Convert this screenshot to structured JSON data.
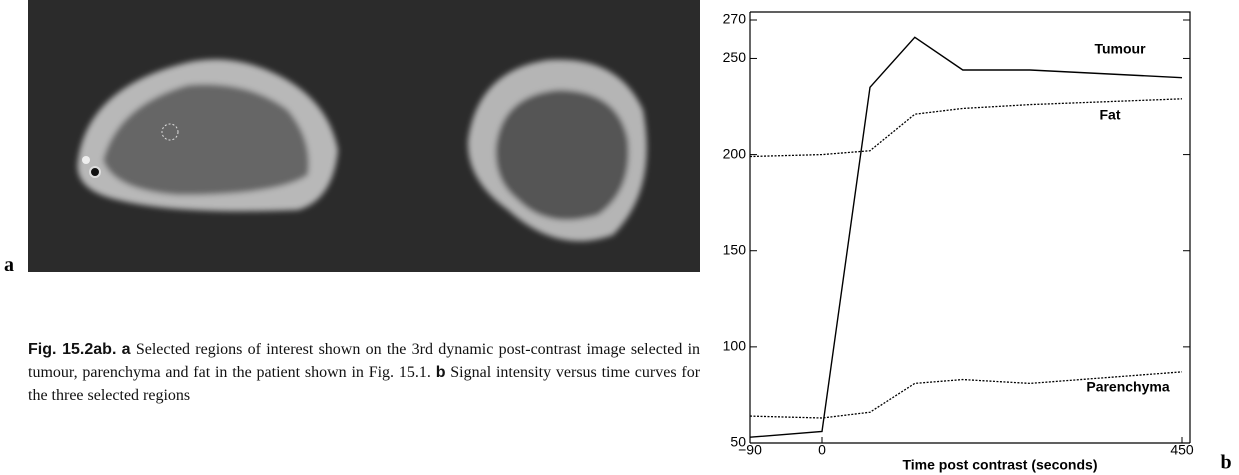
{
  "panel_labels": {
    "a": "a",
    "b": "b"
  },
  "caption": {
    "figure": "Fig. 15.2ab.",
    "a_marker": "a",
    "a_text": "Selected regions of interest shown on the 3rd dynamic post-contrast image selected in tumour, parenchyma and fat in the patient shown in Fig. 15.1.",
    "b_marker": "b",
    "b_text": "Signal intensity versus time curves for the three selected regions"
  },
  "chart_data": {
    "type": "line",
    "xlabel": "Time post contrast (seconds)",
    "x": [
      -90,
      0,
      60,
      116,
      176,
      260,
      450
    ],
    "series": [
      {
        "name": "Tumour",
        "color": "#000000",
        "style": "solid",
        "values": [
          53,
          56,
          235,
          261,
          244,
          244,
          240
        ]
      },
      {
        "name": "Fat",
        "color": "#000000",
        "style": "dotted",
        "values": [
          199,
          200,
          202,
          221,
          224,
          226,
          229
        ]
      },
      {
        "name": "Parenchyma",
        "color": "#000000",
        "style": "dotted",
        "values": [
          64,
          63,
          66,
          81,
          83,
          81,
          87
        ]
      }
    ],
    "xlim": [
      -90,
      450
    ],
    "xticks": [
      {
        "value": -90,
        "label": "−90"
      },
      0,
      450
    ],
    "ylim": [
      50,
      270
    ],
    "yticks": [
      50,
      100,
      150,
      200,
      250,
      270
    ]
  }
}
